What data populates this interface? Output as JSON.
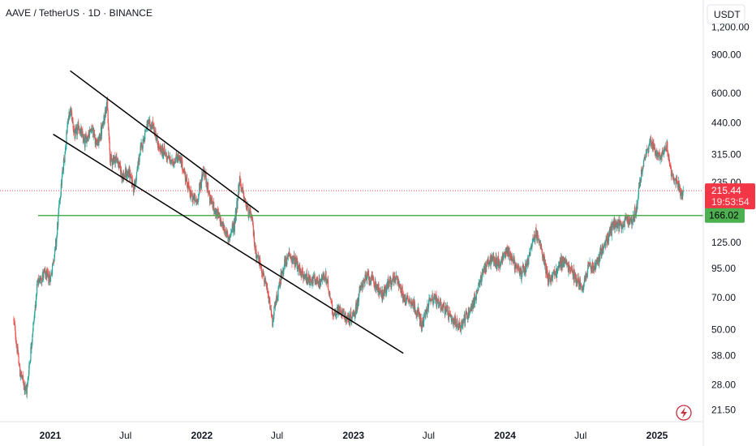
{
  "header": {
    "title": "AAVE / TetherUS · 1D · BINANCE"
  },
  "currency_label": "USDT",
  "price_badge": {
    "value": "215.44",
    "countdown": "19:53:54"
  },
  "line_badge": {
    "value": "166.02"
  },
  "colors": {
    "up": "#26a69a",
    "down": "#ef5350",
    "hline": "#4caf50",
    "trendline": "#000000",
    "badge_price": "#f23645",
    "badge_line": "#4caf50",
    "grid_border": "#e0e3eb"
  },
  "chart_data": {
    "type": "candlestick",
    "y_scale": "log",
    "ylim": [
      19,
      1600
    ],
    "y_ticks": [
      {
        "value": 1200,
        "label": "1,200.00"
      },
      {
        "value": 900,
        "label": "900.00"
      },
      {
        "value": 600,
        "label": "600.00"
      },
      {
        "value": 440,
        "label": "440.00"
      },
      {
        "value": 315,
        "label": "315.00"
      },
      {
        "value": 235,
        "label": "235.00"
      },
      {
        "value": 125,
        "label": "125.00"
      },
      {
        "value": 95,
        "label": "95.00"
      },
      {
        "value": 70,
        "label": "70.00"
      },
      {
        "value": 50,
        "label": "50.00"
      },
      {
        "value": 38,
        "label": "38.00"
      },
      {
        "value": 28,
        "label": "28.00"
      },
      {
        "value": 21.5,
        "label": "21.50"
      }
    ],
    "x_ticks": [
      {
        "date": "2021-01-01",
        "label": "2021",
        "bold": true
      },
      {
        "date": "2021-07-01",
        "label": "Jul",
        "bold": false
      },
      {
        "date": "2022-01-01",
        "label": "2022",
        "bold": true
      },
      {
        "date": "2022-07-01",
        "label": "Jul",
        "bold": false
      },
      {
        "date": "2023-01-01",
        "label": "2023",
        "bold": true
      },
      {
        "date": "2023-07-01",
        "label": "Jul",
        "bold": false
      },
      {
        "date": "2024-01-01",
        "label": "2024",
        "bold": true
      },
      {
        "date": "2024-07-01",
        "label": "Jul",
        "bold": false
      },
      {
        "date": "2025-01-01",
        "label": "2025",
        "bold": true
      }
    ],
    "last_price": 215.44,
    "horizontal_line": 166.02,
    "trendlines": [
      {
        "from": {
          "date": "2021-01-08",
          "price": 390
        },
        "to": {
          "date": "2023-05-01",
          "price": 39
        }
      },
      {
        "from": {
          "date": "2021-02-18",
          "price": 760
        },
        "to": {
          "date": "2022-05-18",
          "price": 172
        }
      }
    ],
    "price_path": [
      [
        "2020-10-05",
        55
      ],
      [
        "2020-10-20",
        32
      ],
      [
        "2020-11-05",
        26
      ],
      [
        "2020-11-20",
        50
      ],
      [
        "2020-12-01",
        80
      ],
      [
        "2020-12-15",
        90
      ],
      [
        "2021-01-01",
        85
      ],
      [
        "2021-01-15",
        125
      ],
      [
        "2021-01-25",
        210
      ],
      [
        "2021-02-05",
        320
      ],
      [
        "2021-02-12",
        450
      ],
      [
        "2021-02-20",
        500
      ],
      [
        "2021-03-01",
        380
      ],
      [
        "2021-03-10",
        420
      ],
      [
        "2021-03-25",
        360
      ],
      [
        "2021-04-10",
        420
      ],
      [
        "2021-04-25",
        350
      ],
      [
        "2021-05-08",
        430
      ],
      [
        "2021-05-17",
        560
      ],
      [
        "2021-05-25",
        300
      ],
      [
        "2021-06-10",
        300
      ],
      [
        "2021-06-25",
        250
      ],
      [
        "2021-07-10",
        260
      ],
      [
        "2021-07-22",
        220
      ],
      [
        "2021-08-05",
        320
      ],
      [
        "2021-08-20",
        420
      ],
      [
        "2021-09-05",
        430
      ],
      [
        "2021-09-20",
        330
      ],
      [
        "2021-10-05",
        320
      ],
      [
        "2021-10-20",
        290
      ],
      [
        "2021-11-05",
        310
      ],
      [
        "2021-11-20",
        260
      ],
      [
        "2021-12-05",
        205
      ],
      [
        "2021-12-20",
        190
      ],
      [
        "2022-01-05",
        270
      ],
      [
        "2022-01-20",
        200
      ],
      [
        "2022-02-05",
        170
      ],
      [
        "2022-02-20",
        150
      ],
      [
        "2022-03-05",
        130
      ],
      [
        "2022-03-20",
        150
      ],
      [
        "2022-04-02",
        240
      ],
      [
        "2022-04-15",
        190
      ],
      [
        "2022-05-01",
        160
      ],
      [
        "2022-05-10",
        115
      ],
      [
        "2022-05-25",
        95
      ],
      [
        "2022-06-10",
        70
      ],
      [
        "2022-06-20",
        55
      ],
      [
        "2022-07-01",
        70
      ],
      [
        "2022-07-15",
        95
      ],
      [
        "2022-08-01",
        110
      ],
      [
        "2022-08-15",
        100
      ],
      [
        "2022-09-01",
        88
      ],
      [
        "2022-09-20",
        85
      ],
      [
        "2022-10-10",
        82
      ],
      [
        "2022-10-25",
        88
      ],
      [
        "2022-11-05",
        72
      ],
      [
        "2022-11-15",
        58
      ],
      [
        "2022-12-01",
        62
      ],
      [
        "2022-12-20",
        55
      ],
      [
        "2023-01-05",
        60
      ],
      [
        "2023-01-20",
        80
      ],
      [
        "2023-02-05",
        88
      ],
      [
        "2023-02-20",
        82
      ],
      [
        "2023-03-10",
        72
      ],
      [
        "2023-03-25",
        80
      ],
      [
        "2023-04-15",
        88
      ],
      [
        "2023-05-01",
        70
      ],
      [
        "2023-05-20",
        68
      ],
      [
        "2023-06-05",
        60
      ],
      [
        "2023-06-15",
        52
      ],
      [
        "2023-07-05",
        70
      ],
      [
        "2023-07-20",
        68
      ],
      [
        "2023-08-10",
        62
      ],
      [
        "2023-08-25",
        55
      ],
      [
        "2023-09-15",
        52
      ],
      [
        "2023-10-05",
        60
      ],
      [
        "2023-10-25",
        72
      ],
      [
        "2023-11-10",
        95
      ],
      [
        "2023-12-01",
        105
      ],
      [
        "2023-12-20",
        100
      ],
      [
        "2024-01-05",
        115
      ],
      [
        "2024-01-20",
        105
      ],
      [
        "2024-02-05",
        90
      ],
      [
        "2024-02-20",
        95
      ],
      [
        "2024-03-05",
        120
      ],
      [
        "2024-03-15",
        140
      ],
      [
        "2024-04-01",
        110
      ],
      [
        "2024-04-15",
        85
      ],
      [
        "2024-05-01",
        90
      ],
      [
        "2024-05-20",
        105
      ],
      [
        "2024-06-05",
        95
      ],
      [
        "2024-06-20",
        85
      ],
      [
        "2024-07-05",
        78
      ],
      [
        "2024-07-20",
        100
      ],
      [
        "2024-08-05",
        95
      ],
      [
        "2024-08-20",
        115
      ],
      [
        "2024-09-05",
        130
      ],
      [
        "2024-09-20",
        155
      ],
      [
        "2024-10-05",
        145
      ],
      [
        "2024-10-20",
        160
      ],
      [
        "2024-11-01",
        155
      ],
      [
        "2024-11-12",
        180
      ],
      [
        "2024-11-25",
        260
      ],
      [
        "2024-12-05",
        320
      ],
      [
        "2024-12-15",
        360
      ],
      [
        "2024-12-25",
        330
      ],
      [
        "2025-01-05",
        310
      ],
      [
        "2025-01-15",
        320
      ],
      [
        "2025-01-25",
        350
      ],
      [
        "2025-02-03",
        260
      ],
      [
        "2025-02-12",
        240
      ],
      [
        "2025-02-22",
        225
      ],
      [
        "2025-03-01",
        200
      ],
      [
        "2025-03-06",
        215
      ]
    ]
  }
}
